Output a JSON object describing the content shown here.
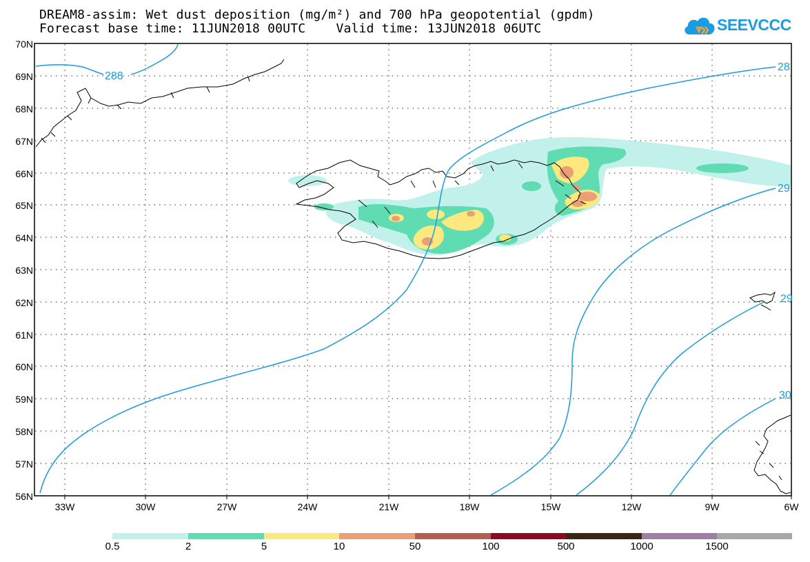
{
  "title": {
    "line1": "DREAM8-assim: Wet dust deposition (mg/m²) and 700 hPa geopotential (gpdm)",
    "line2": "Forecast base time: 11JUN2018 00UTC    Valid time: 13JUN2018 06UTC"
  },
  "logo": {
    "text": "SEEVCCC",
    "color": "#1a9be2",
    "icon": "cloud-icon"
  },
  "map": {
    "lon_range_deg": [
      -34,
      -6
    ],
    "lat_range_deg": [
      56,
      70
    ],
    "latitude_labels": [
      "70N",
      "69N",
      "68N",
      "67N",
      "66N",
      "65N",
      "64N",
      "63N",
      "62N",
      "61N",
      "60N",
      "59N",
      "58N",
      "57N",
      "56N"
    ],
    "longitude_labels": [
      "33W",
      "30W",
      "27W",
      "24W",
      "21W",
      "18W",
      "15W",
      "12W",
      "9W",
      "6W"
    ],
    "contour_color": "#1a9be2",
    "contour_labels": [
      "288",
      "28",
      "29",
      "29",
      "30"
    ]
  },
  "colorbar": {
    "labels": [
      "0.5",
      "2",
      "5",
      "10",
      "50",
      "100",
      "500",
      "1000",
      "1500"
    ],
    "colors": [
      "#c2f0ea",
      "#5fdcb2",
      "#fbe87e",
      "#ec9f74",
      "#b55e50",
      "#8d0b22",
      "#3a2612",
      "#9f7fa8",
      "#a8a8a8"
    ]
  }
}
